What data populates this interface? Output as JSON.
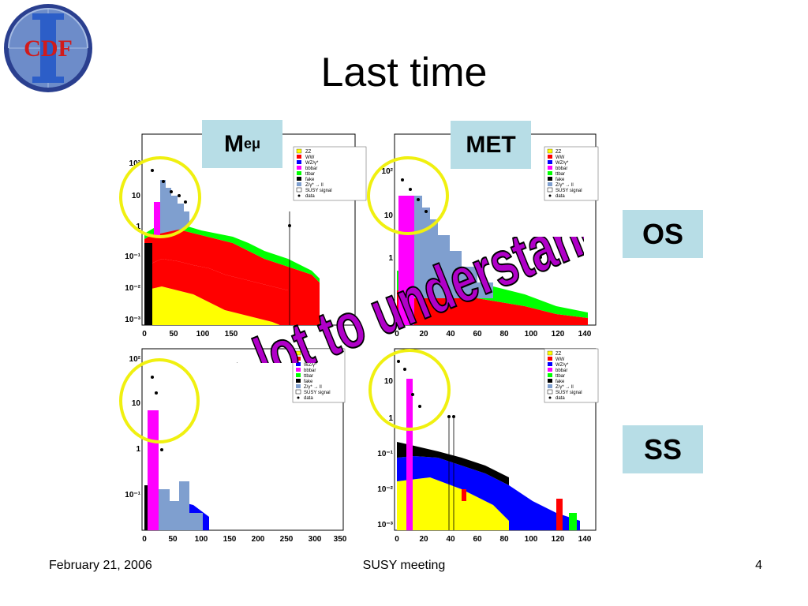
{
  "slide": {
    "title": "Last time",
    "page_number": "4"
  },
  "logo": {
    "text": "CDF",
    "numeral": "II"
  },
  "labels": {
    "meu_main": "M",
    "meu_sub": "eμ",
    "met": "MET",
    "os": "OS",
    "ss": "SS"
  },
  "overlay_text": "A lot to understand",
  "footer": {
    "date": "February 21, 2006",
    "meeting": "SUSY meeting"
  },
  "legend": [
    "ZZ",
    "WW",
    "WZ/γ*",
    "bbbar",
    "ttbar",
    "fake",
    "Z/γ* → ll",
    "SUSY signal",
    "data"
  ],
  "colors": {
    "accent_box": "#b7dde6",
    "circle": "#f0f010",
    "zz": "#ffff00",
    "ww": "#ff0000",
    "wz": "#0000ff",
    "bbbar": "#ff00ff",
    "ttbar": "#00ff00",
    "fake": "#000000",
    "dy": "#7f9fcf",
    "overlay": "#b000c8"
  },
  "charts": [
    {
      "name": "os-meu",
      "xticks": [
        "0",
        "50",
        "100",
        "150"
      ],
      "yticks": [
        "10⁻³",
        "10⁻²",
        "10⁻¹",
        "1",
        "10",
        "10²"
      ]
    },
    {
      "name": "os-met",
      "xticks": [
        "0",
        "20",
        "40",
        "60",
        "80",
        "100",
        "120",
        "140"
      ],
      "yticks": [
        "1",
        "10",
        "10²"
      ]
    },
    {
      "name": "ss-meu",
      "xticks": [
        "0",
        "50",
        "100",
        "150",
        "200",
        "250",
        "300",
        "350"
      ],
      "yticks": [
        "10⁻¹",
        "1",
        "10",
        "10²"
      ]
    },
    {
      "name": "ss-met",
      "xticks": [
        "0",
        "20",
        "40",
        "60",
        "80",
        "100",
        "120",
        "140"
      ],
      "yticks": [
        "10⁻³",
        "10⁻²",
        "10⁻¹",
        "1",
        "10"
      ]
    }
  ]
}
